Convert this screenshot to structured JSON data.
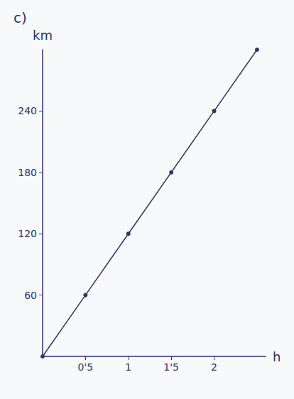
{
  "chart_data": {
    "type": "line",
    "title": "c)",
    "x_label": "h",
    "y_label": "km",
    "x": [
      0,
      0.5,
      1,
      1.5,
      2,
      2.5
    ],
    "values": [
      0,
      60,
      120,
      180,
      240,
      300
    ],
    "color": "#2b3566",
    "marker": "circle",
    "xlim": [
      0,
      2.6
    ],
    "xticks": [
      {
        "value": 0.5,
        "label": "0'5"
      },
      1,
      {
        "value": 1.5,
        "label": "1'5"
      },
      2
    ],
    "ylim": [
      0,
      300
    ],
    "yticks": [
      60,
      120,
      180,
      240
    ],
    "grid": false
  }
}
